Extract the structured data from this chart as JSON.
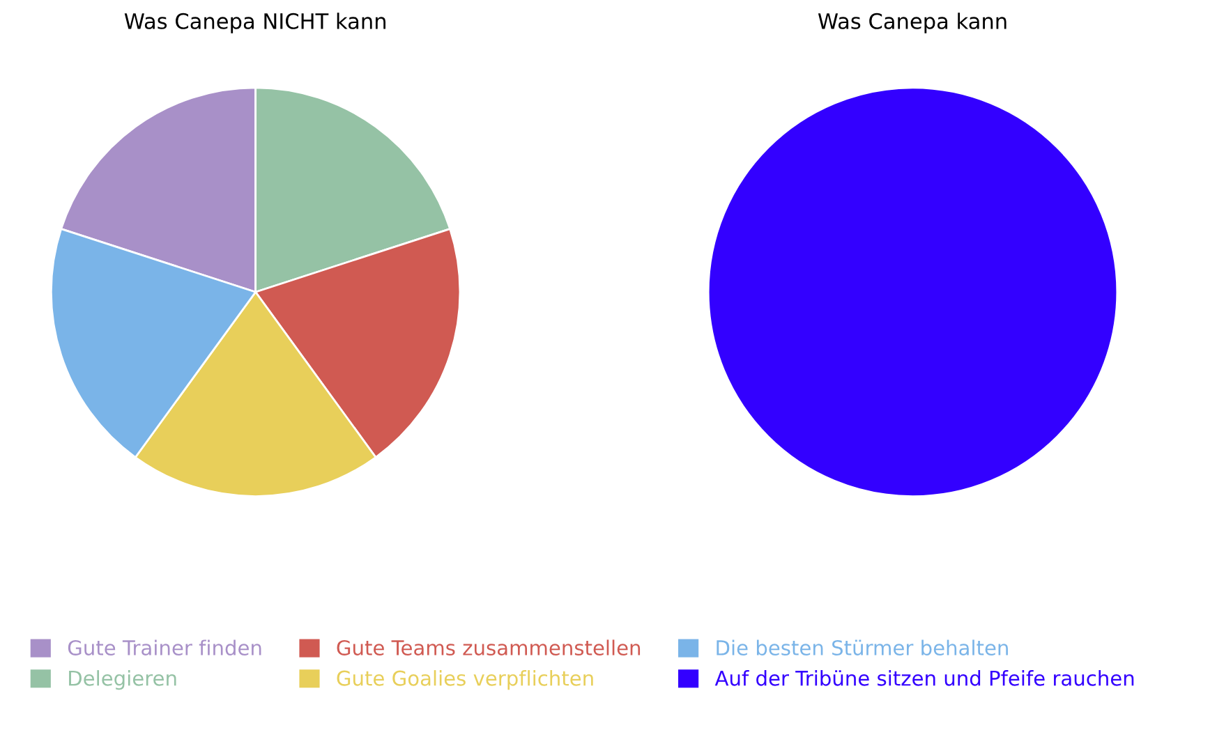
{
  "chart_data": [
    {
      "type": "pie",
      "title": "Was Canepa NICHT kann",
      "categories": [
        "Gute Trainer finden",
        "Delegieren",
        "Gute Teams zusammenstellen",
        "Gute Goalies verpflichten",
        "Die besten Stürmer behalten"
      ],
      "values": [
        20,
        20,
        20,
        20,
        20
      ],
      "colors": [
        "#a890c8",
        "#95c2a5",
        "#d05a52",
        "#e8cf5a",
        "#7ab4e8"
      ],
      "legend": "bottom"
    },
    {
      "type": "pie",
      "title": "Was Canepa kann",
      "categories": [
        "Auf der Tribüne sitzen und Pfeife rauchen"
      ],
      "values": [
        100
      ],
      "colors": [
        "#3300ff"
      ],
      "legend": "bottom"
    }
  ]
}
